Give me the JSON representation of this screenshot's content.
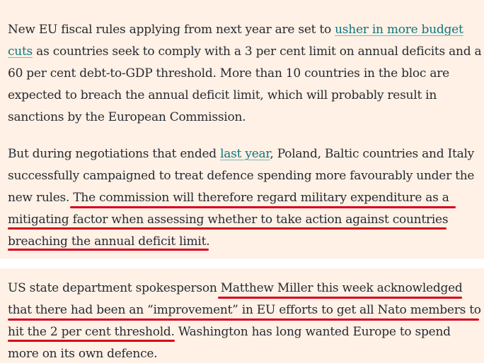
{
  "paragraph1": {
    "l1_pre": "New EU fiscal rules applying from next year are set to ",
    "l1_link": "usher in more budget",
    "l2_link": "cuts",
    "l2_post": " as countries seek to comply with a 3 per cent limit on annual deficits and a",
    "l3": "60 per cent debt-to-GDP threshold. More than 10 countries in the bloc are",
    "l4": "expected to breach the annual deficit limit, which will probably result in",
    "l5": "sanctions by the European Commission."
  },
  "paragraph2": {
    "l1_pre": "But during negotiations that ended ",
    "l1_link": "last year",
    "l1_post": ", Poland, Baltic countries and Italy",
    "l2": "successfully campaigned to treat defence spending more favourably under the",
    "l3_pre": "new rules. ",
    "l3_hl": "The commission will therefore regard military expenditure as a",
    "l4": "mitigating factor when assessing whether to take action against countries",
    "l5_hl": "breaching the annual deficit limit",
    "l5_post": "."
  },
  "paragraph3": {
    "l1_pre": "US state department spokesperson ",
    "l1_hl": "Matthew Miller this week acknowledged",
    "l2": "that there had been an “improvement” in EU efforts to get all Nato members to",
    "l3_hl": "hit the 2 per cent threshold",
    "l3_post": ". Washington has long wanted Europe to spend",
    "l4": "more on its own defence."
  },
  "colors": {
    "background": "#fff1e5",
    "text": "#262a33",
    "link": "#0d7680",
    "annotation": "#d6001c"
  }
}
